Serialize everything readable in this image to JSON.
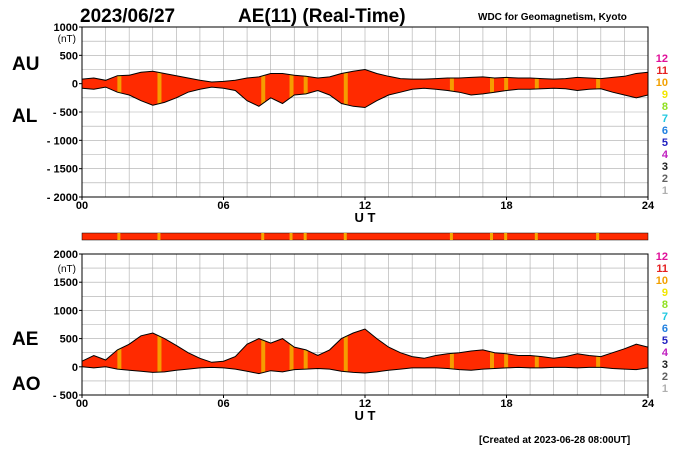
{
  "header": {
    "date": "2023/06/27",
    "title": "AE(11) (Real-Time)",
    "source": "WDC for Geomagnetism, Kyoto"
  },
  "footer": {
    "created": "[Created at 2023-06-28 08:00UT]"
  },
  "legend": {
    "levels": [
      {
        "label": "12",
        "color": "#e0109a"
      },
      {
        "label": "11",
        "color": "#e52020"
      },
      {
        "label": "10",
        "color": "#f2a000"
      },
      {
        "label": "9",
        "color": "#f2e600"
      },
      {
        "label": "8",
        "color": "#90e020"
      },
      {
        "label": "7",
        "color": "#20c8e0"
      },
      {
        "label": "6",
        "color": "#2080e0"
      },
      {
        "label": "5",
        "color": "#2020c0"
      },
      {
        "label": "4",
        "color": "#c020c0"
      },
      {
        "label": "3",
        "color": "#202020"
      },
      {
        "label": "2",
        "color": "#606060"
      },
      {
        "label": "1",
        "color": "#b0b0b0"
      }
    ]
  },
  "colors": {
    "fill_main": "#ff2a00",
    "fill_alt": "#f5a800",
    "line": "#000000",
    "grid": "#aaaaaa"
  },
  "chart_data": [
    {
      "type": "area",
      "side_labels": [
        "AU",
        "AL"
      ],
      "unit_label": "(nT)",
      "xlabel": "U T",
      "xticks": [
        "00",
        "06",
        "12",
        "18",
        "24"
      ],
      "xlim": [
        0,
        24
      ],
      "ylim": [
        -2000,
        1000
      ],
      "yticks": [
        1000,
        500,
        0,
        -500,
        -1000,
        -1500,
        -2000
      ],
      "ytick_labels": [
        "1000",
        "500",
        "0",
        "- 500",
        "- 1000",
        "- 1500",
        "- 2000"
      ],
      "grid": true,
      "series": [
        {
          "key": "upper",
          "x": [
            0,
            0.5,
            1,
            1.5,
            2,
            2.5,
            3,
            3.5,
            4,
            4.5,
            5,
            5.5,
            6,
            6.5,
            7,
            7.5,
            8,
            8.5,
            9,
            9.5,
            10,
            10.5,
            11,
            11.5,
            12,
            12.5,
            13,
            13.5,
            14,
            14.5,
            15,
            15.5,
            16,
            16.5,
            17,
            17.5,
            18,
            18.5,
            19,
            19.5,
            20,
            20.5,
            21,
            21.5,
            22,
            22.5,
            23,
            23.5,
            24
          ],
          "values": [
            80,
            100,
            60,
            140,
            150,
            200,
            220,
            180,
            140,
            100,
            60,
            30,
            40,
            60,
            100,
            120,
            180,
            180,
            150,
            130,
            100,
            120,
            180,
            220,
            250,
            180,
            130,
            90,
            80,
            80,
            90,
            100,
            100,
            110,
            120,
            100,
            110,
            100,
            100,
            90,
            80,
            90,
            110,
            100,
            90,
            110,
            130,
            180,
            200
          ]
        },
        {
          "key": "lower",
          "x": [
            0,
            0.5,
            1,
            1.5,
            2,
            2.5,
            3,
            3.5,
            4,
            4.5,
            5,
            5.5,
            6,
            6.5,
            7,
            7.5,
            8,
            8.5,
            9,
            9.5,
            10,
            10.5,
            11,
            11.5,
            12,
            12.5,
            13,
            13.5,
            14,
            14.5,
            15,
            15.5,
            16,
            16.5,
            17,
            17.5,
            18,
            18.5,
            19,
            19.5,
            20,
            20.5,
            21,
            21.5,
            22,
            22.5,
            23,
            23.5,
            24
          ],
          "values": [
            -80,
            -100,
            -60,
            -150,
            -200,
            -300,
            -380,
            -330,
            -250,
            -150,
            -100,
            -60,
            -80,
            -120,
            -300,
            -400,
            -250,
            -350,
            -200,
            -180,
            -120,
            -200,
            -350,
            -400,
            -420,
            -300,
            -200,
            -150,
            -100,
            -80,
            -100,
            -120,
            -150,
            -200,
            -180,
            -150,
            -120,
            -100,
            -100,
            -90,
            -80,
            -90,
            -120,
            -100,
            -90,
            -150,
            -200,
            -250,
            -200
          ]
        }
      ]
    },
    {
      "type": "area",
      "side_labels": [
        "AE",
        "AO"
      ],
      "unit_label": "(nT)",
      "xlabel": "U T",
      "xticks": [
        "00",
        "06",
        "12",
        "18",
        "24"
      ],
      "xlim": [
        0,
        24
      ],
      "ylim": [
        -500,
        2000
      ],
      "yticks": [
        2000,
        1500,
        1000,
        500,
        0,
        -500
      ],
      "ytick_labels": [
        "2000",
        "1500",
        "1000",
        "500",
        "0",
        "- 500"
      ],
      "grid": true,
      "series": [
        {
          "key": "upper",
          "x": [
            0,
            0.5,
            1,
            1.5,
            2,
            2.5,
            3,
            3.5,
            4,
            4.5,
            5,
            5.5,
            6,
            6.5,
            7,
            7.5,
            8,
            8.5,
            9,
            9.5,
            10,
            10.5,
            11,
            11.5,
            12,
            12.5,
            13,
            13.5,
            14,
            14.5,
            15,
            15.5,
            16,
            16.5,
            17,
            17.5,
            18,
            18.5,
            19,
            19.5,
            20,
            20.5,
            21,
            21.5,
            22,
            22.5,
            23,
            23.5,
            24
          ],
          "values": [
            100,
            200,
            120,
            300,
            400,
            550,
            600,
            500,
            380,
            250,
            150,
            80,
            100,
            180,
            400,
            500,
            420,
            500,
            350,
            300,
            200,
            300,
            500,
            600,
            670,
            500,
            350,
            250,
            180,
            150,
            200,
            230,
            250,
            280,
            300,
            250,
            230,
            200,
            200,
            180,
            150,
            180,
            230,
            200,
            180,
            250,
            320,
            400,
            350
          ]
        },
        {
          "key": "lower",
          "x": [
            0,
            0.5,
            1,
            1.5,
            2,
            2.5,
            3,
            3.5,
            4,
            4.5,
            5,
            5.5,
            6,
            6.5,
            7,
            7.5,
            8,
            8.5,
            9,
            9.5,
            10,
            10.5,
            11,
            11.5,
            12,
            12.5,
            13,
            13.5,
            14,
            14.5,
            15,
            15.5,
            16,
            16.5,
            17,
            17.5,
            18,
            18.5,
            19,
            19.5,
            20,
            20.5,
            21,
            21.5,
            22,
            22.5,
            23,
            23.5,
            24
          ],
          "values": [
            0,
            -20,
            0,
            -40,
            -60,
            -80,
            -100,
            -90,
            -60,
            -40,
            -20,
            -10,
            -20,
            -40,
            -80,
            -120,
            -70,
            -90,
            -50,
            -40,
            -30,
            -40,
            -80,
            -100,
            -110,
            -90,
            -60,
            -40,
            -20,
            -20,
            -20,
            -30,
            -50,
            -60,
            -40,
            -30,
            -20,
            -10,
            -20,
            -20,
            -10,
            -10,
            -20,
            -10,
            -10,
            -30,
            -40,
            -50,
            -20
          ]
        }
      ],
      "status_bar": true
    }
  ]
}
